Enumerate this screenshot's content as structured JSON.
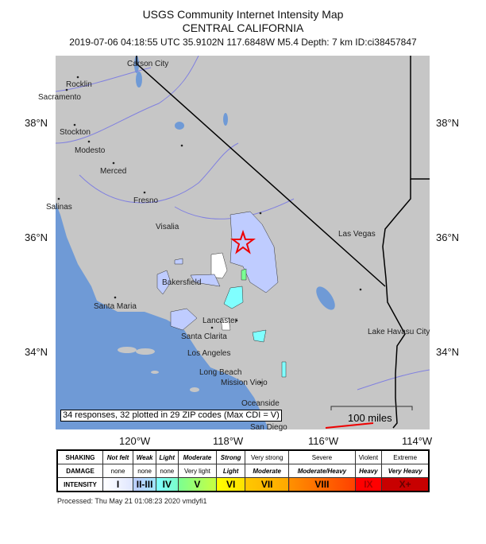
{
  "header": {
    "title": "USGS Community Internet Intensity Map",
    "region": "CENTRAL CALIFORNIA",
    "subtitle": "2019-07-06 04:18:55 UTC 35.9102N 117.6848W M5.4 Depth: 7 km ID:ci38457847"
  },
  "map": {
    "lat_labels": [
      "38°N",
      "36°N",
      "34°N"
    ],
    "lon_labels": [
      "120°W",
      "118°W",
      "116°W",
      "114°W"
    ],
    "cities": [
      "Carson City",
      "Rocklin",
      "Sacramento",
      "Stockton",
      "Modesto",
      "Merced",
      "Salinas",
      "Fresno",
      "Visalia",
      "Las Vegas",
      "Bakersfield",
      "Santa Maria",
      "Lancaster",
      "Santa Clarita",
      "Los Angeles",
      "Long Beach",
      "Mission Viejo",
      "Oceanside",
      "San Diego",
      "Lake Havasu City"
    ],
    "epicenter_icon": "red-star-icon",
    "responses_text": "34 responses, 32 plotted in 29 ZIP codes (Max CDI = V)",
    "scale_label": "100 miles",
    "colors": {
      "land": "#c4c4c4",
      "water": "#6f9ad6",
      "cdi_ii_iii": "#bfccff",
      "cdi_iv": "#80ffff",
      "cdi_v": "#7aff93",
      "cdi_i": "#ffffff"
    }
  },
  "legend": {
    "rows": [
      {
        "label": "SHAKING",
        "cells": [
          "Not felt",
          "Weak",
          "Light",
          "Moderate",
          "Strong",
          "Very strong",
          "Severe",
          "Violent",
          "Extreme"
        ]
      },
      {
        "label": "DAMAGE",
        "cells": [
          "none",
          "none",
          "none",
          "Very light",
          "Light",
          "Moderate",
          "Moderate/Heavy",
          "Heavy",
          "Very Heavy"
        ]
      },
      {
        "label": "INTENSITY",
        "cells": [
          "I",
          "II-III",
          "IV",
          "V",
          "VI",
          "VII",
          "VIII",
          "IX",
          "X+"
        ]
      }
    ],
    "colors": [
      "#ffffff",
      "#bfccff",
      "#80ffff",
      "#7aff93",
      "#ffff00",
      "#ffc800",
      "#ff9100",
      "#ff0000",
      "#c80000"
    ]
  },
  "footer": {
    "processed": "Processed: Thu May 21 01:08:23 2020 vmdyfi1"
  }
}
